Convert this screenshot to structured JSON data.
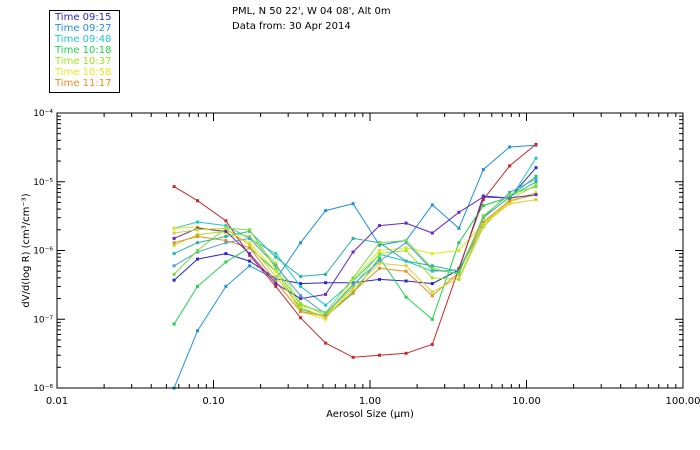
{
  "header": {
    "line1": "PML, N 50 22', W 04 08', Alt 0m",
    "line2": "Data from: 30 Apr 2014"
  },
  "chart_data": {
    "type": "line",
    "xscale": "log",
    "yscale": "log",
    "xlim": [
      0.01,
      100
    ],
    "ylim": [
      1e-08,
      0.0001
    ],
    "xlabel": "Aerosol Size (μm)",
    "ylabel": "dV/d(log R) (cm³/cm⁻³)",
    "x_ticks": [
      {
        "value": 0.01,
        "label": "0.01"
      },
      {
        "value": 0.1,
        "label": "0.10"
      },
      {
        "value": 1,
        "label": "1.00"
      },
      {
        "value": 10,
        "label": "10.00"
      },
      {
        "value": 100,
        "label": "100.00"
      }
    ],
    "y_ticks": [
      {
        "value": 1e-08,
        "label": "10⁻⁸"
      },
      {
        "value": 1e-07,
        "label": "10⁻⁷"
      },
      {
        "value": 1e-06,
        "label": "10⁻⁶"
      },
      {
        "value": 1e-05,
        "label": "10⁻⁵"
      },
      {
        "value": 0.0001,
        "label": "10⁻⁴"
      }
    ],
    "legend_position": "top-left",
    "x": [
      0.056,
      0.079,
      0.12,
      0.17,
      0.25,
      0.36,
      0.52,
      0.78,
      1.15,
      1.7,
      2.5,
      3.7,
      5.3,
      7.8,
      11.5
    ],
    "series": [
      {
        "name": "Time 09:15",
        "color": "#2828c8",
        "values": [
          3.7e-07,
          7.5e-07,
          9e-07,
          7e-07,
          3.9e-07,
          3.3e-07,
          3.4e-07,
          3.4e-07,
          3.8e-07,
          3.6e-07,
          3.3e-07,
          5.2e-07,
          6.2e-06,
          5.8e-06,
          1.6e-05
        ]
      },
      {
        "name": "Time 09:27",
        "color": "#1e90e0",
        "values": [
          1e-08,
          6.8e-08,
          3e-07,
          6e-07,
          3.8e-07,
          1.3e-06,
          3.8e-06,
          4.8e-06,
          1.2e-06,
          1.4e-06,
          4.6e-06,
          2.1e-06,
          1.5e-05,
          3.2e-05,
          3.4e-05
        ]
      },
      {
        "name": "Time 09:48",
        "color": "#1ec8c8",
        "values": [
          2.1e-06,
          2.6e-06,
          2.3e-06,
          1.5e-06,
          9e-07,
          3e-07,
          1.6e-07,
          3.6e-07,
          8.8e-07,
          7e-07,
          5e-07,
          5.2e-07,
          2.2e-06,
          5.5e-06,
          2.2e-05
        ]
      },
      {
        "name": "Time 10:18",
        "color": "#1ed24a",
        "values": [
          8.5e-08,
          3e-07,
          6.8e-07,
          1.1e-06,
          5e-07,
          1.4e-07,
          1.1e-07,
          2.4e-07,
          7.8e-07,
          2.1e-07,
          1e-07,
          1.3e-06,
          4.5e-06,
          6e-06,
          1.2e-05
        ]
      },
      {
        "name": "Time 10:37",
        "color": "#a0e61e",
        "values": [
          1.2e-06,
          1.7e-06,
          1.9e-06,
          1.6e-06,
          6.5e-07,
          1.7e-07,
          1.15e-07,
          3e-07,
          9e-07,
          1e-06,
          4e-07,
          3.8e-07,
          2.2e-06,
          5.5e-06,
          9e-06
        ]
      },
      {
        "name": "Time 10:58",
        "color": "#e6e61e",
        "values": [
          2.1e-06,
          2.2e-06,
          1.8e-06,
          1.3e-06,
          5e-07,
          1.3e-07,
          1e-07,
          3.8e-07,
          1e-06,
          1.1e-06,
          9e-07,
          1e-06,
          2.5e-06,
          5e-06,
          7e-06
        ]
      },
      {
        "name": "Time 11:17",
        "color": "#f08c1e",
        "values": [
          1.3e-06,
          1.6e-06,
          1.4e-06,
          1.1e-06,
          3.5e-07,
          1.3e-07,
          1.1e-07,
          2.5e-07,
          5.5e-07,
          5e-07,
          2.2e-07,
          4.8e-07,
          2.6e-06,
          5.3e-06,
          6.5e-06
        ]
      },
      {
        "name": "",
        "color": "#c82828",
        "values": [
          8.5e-06,
          5.3e-06,
          2.7e-06,
          8.5e-07,
          3e-07,
          1.05e-07,
          4.5e-08,
          2.8e-08,
          3e-08,
          3.2e-08,
          4.3e-08,
          5.5e-07,
          5.5e-06,
          1.7e-05,
          3.5e-05
        ]
      },
      {
        "name": "",
        "color": "#6428c8",
        "values": [
          1.5e-06,
          2.1e-06,
          1.9e-06,
          9e-07,
          3.3e-07,
          2e-07,
          2.3e-07,
          9.5e-07,
          2.3e-06,
          2.5e-06,
          1.8e-06,
          3.6e-06,
          6e-06,
          5.8e-06,
          6.5e-06
        ]
      },
      {
        "name": "",
        "color": "#50a0dc",
        "values": [
          6e-07,
          9.5e-07,
          1.3e-06,
          1.5e-06,
          6e-07,
          2.2e-07,
          1.2e-07,
          3.2e-07,
          7e-07,
          1.3e-06,
          5.2e-07,
          4.7e-07,
          3e-06,
          7e-06,
          1.1e-05
        ]
      },
      {
        "name": "",
        "color": "#28b4a0",
        "values": [
          9e-07,
          1.3e-06,
          1.6e-06,
          1.9e-06,
          8e-07,
          4.2e-07,
          4.5e-07,
          1.5e-06,
          1.3e-06,
          7e-07,
          6e-07,
          5e-07,
          3e-06,
          6e-06,
          1e-05
        ]
      },
      {
        "name": "",
        "color": "#78dc3c",
        "values": [
          4.5e-07,
          1e-06,
          2.1e-06,
          2e-06,
          5.5e-07,
          1.6e-07,
          1.25e-07,
          4e-07,
          1.3e-06,
          1.4e-06,
          5.5e-07,
          4.5e-07,
          3.2e-06,
          6.5e-06,
          8.5e-06
        ]
      },
      {
        "name": "",
        "color": "#d2d232",
        "values": [
          1.8e-06,
          2e-06,
          2.1e-06,
          1.2e-06,
          4.2e-07,
          1.5e-07,
          1.05e-07,
          2.8e-07,
          6.5e-07,
          6e-07,
          2.5e-07,
          4e-07,
          2.4e-06,
          4.8e-06,
          5.5e-06
        ]
      }
    ]
  }
}
